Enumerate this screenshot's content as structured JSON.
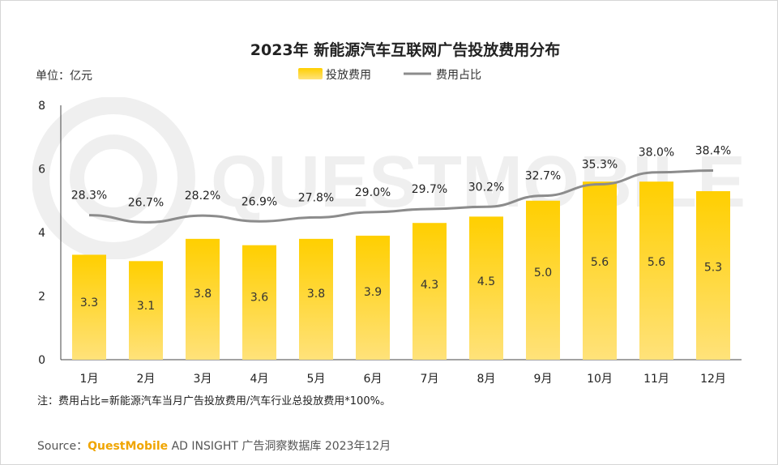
{
  "chart_data": {
    "type": "bar",
    "title": "2023年 新能源汽车互联网广告投放费用分布",
    "unit_label": "单位：亿元",
    "categories": [
      "1月",
      "2月",
      "3月",
      "4月",
      "5月",
      "6月",
      "7月",
      "8月",
      "9月",
      "10月",
      "11月",
      "12月"
    ],
    "series": [
      {
        "name": "投放费用",
        "kind": "bar",
        "values": [
          3.3,
          3.1,
          3.8,
          3.6,
          3.8,
          3.9,
          4.3,
          4.5,
          5.0,
          5.6,
          5.6,
          5.3
        ],
        "labels": [
          "3.3",
          "3.1",
          "3.8",
          "3.6",
          "3.8",
          "3.9",
          "4.3",
          "4.5",
          "5.0",
          "5.6",
          "5.6",
          "5.3"
        ],
        "color": "#ffc800"
      },
      {
        "name": "费用占比",
        "kind": "line",
        "values": [
          28.3,
          26.7,
          28.2,
          26.9,
          27.8,
          29.0,
          29.7,
          30.2,
          32.7,
          35.3,
          38.0,
          38.4
        ],
        "labels": [
          "28.3%",
          "26.7%",
          "28.2%",
          "26.9%",
          "27.8%",
          "29.0%",
          "29.7%",
          "30.2%",
          "32.7%",
          "35.3%",
          "38.0%",
          "38.4%"
        ],
        "color": "#8c8c8c"
      }
    ],
    "ylim": [
      0,
      8
    ],
    "yticks": [
      "0",
      "2",
      "4",
      "6",
      "8"
    ],
    "legend_position": "top-center"
  },
  "note": "注：费用占比=新能源汽车当月广告投放费用/汽车行业总投放费用*100%。",
  "source": {
    "prefix": "Source：",
    "brand": "QuestMobile",
    "rest": " AD INSIGHT 广告洞察数据库 2023年12月"
  },
  "watermark": "QUESTMOBILE"
}
